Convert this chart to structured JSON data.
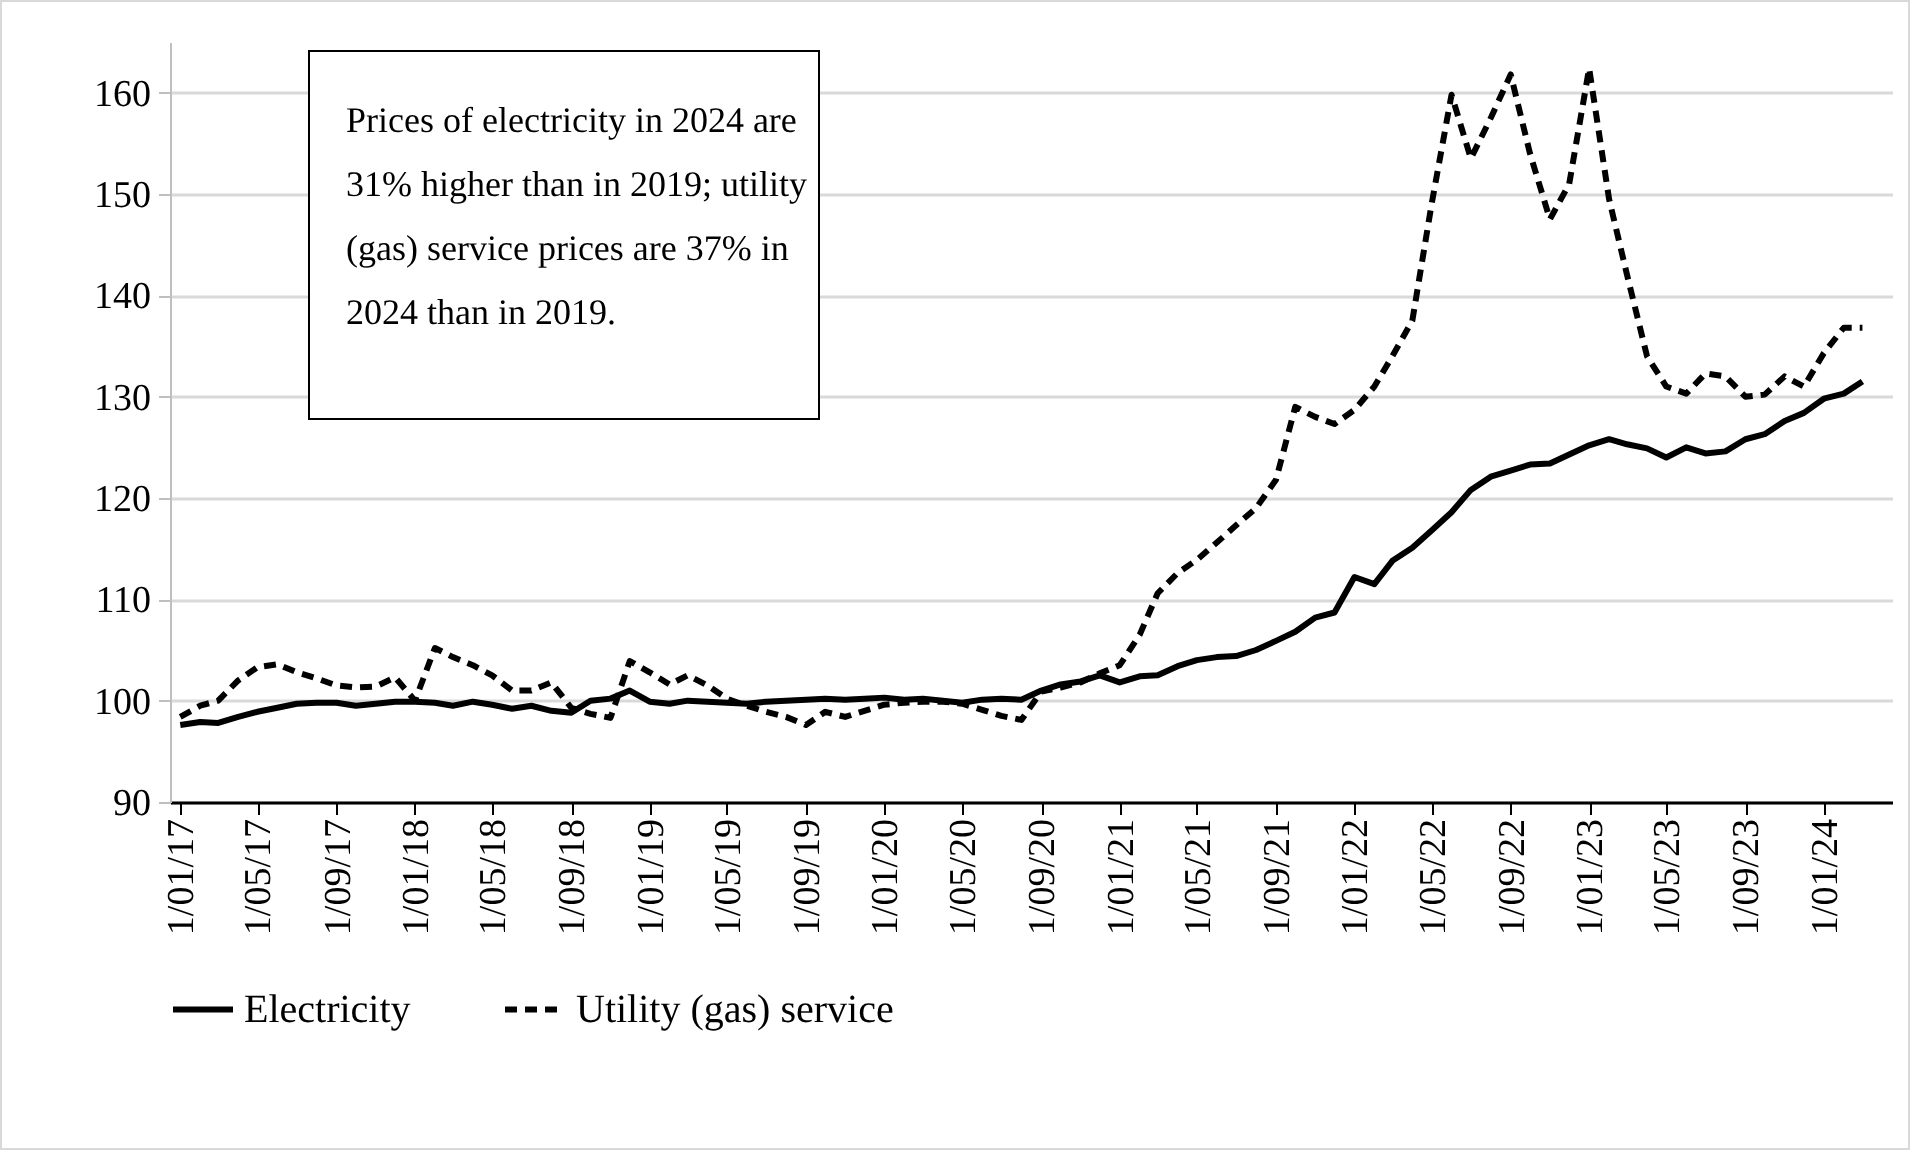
{
  "chart_data": {
    "type": "line",
    "annotations": [
      "Prices of electricity in 2024 are 31% higher than in 2019; utility (gas) service prices are 37% in 2024 than in 2019."
    ],
    "x": [
      "2017-01",
      "2017-02",
      "2017-03",
      "2017-04",
      "2017-05",
      "2017-06",
      "2017-07",
      "2017-08",
      "2017-09",
      "2017-10",
      "2017-11",
      "2017-12",
      "2018-01",
      "2018-02",
      "2018-03",
      "2018-04",
      "2018-05",
      "2018-06",
      "2018-07",
      "2018-08",
      "2018-09",
      "2018-10",
      "2018-11",
      "2018-12",
      "2019-01",
      "2019-02",
      "2019-03",
      "2019-04",
      "2019-05",
      "2019-06",
      "2019-07",
      "2019-08",
      "2019-09",
      "2019-10",
      "2019-11",
      "2019-12",
      "2020-01",
      "2020-02",
      "2020-03",
      "2020-04",
      "2020-05",
      "2020-06",
      "2020-07",
      "2020-08",
      "2020-09",
      "2020-10",
      "2020-11",
      "2020-12",
      "2021-01",
      "2021-02",
      "2021-03",
      "2021-04",
      "2021-05",
      "2021-06",
      "2021-07",
      "2021-08",
      "2021-09",
      "2021-10",
      "2021-11",
      "2021-12",
      "2022-01",
      "2022-02",
      "2022-03",
      "2022-04",
      "2022-05",
      "2022-06",
      "2022-07",
      "2022-08",
      "2022-09",
      "2022-10",
      "2022-11",
      "2022-12",
      "2023-01",
      "2023-02",
      "2023-03",
      "2023-04",
      "2023-05",
      "2023-06",
      "2023-07",
      "2023-08",
      "2023-09",
      "2023-10",
      "2023-11",
      "2023-12",
      "2024-01",
      "2024-02",
      "2024-03"
    ],
    "series": [
      {
        "name": "Electricity",
        "color": "#000000",
        "line_style": "solid",
        "values": [
          97.6,
          97.9,
          97.8,
          98.4,
          98.9,
          99.3,
          99.7,
          99.8,
          99.8,
          99.5,
          99.7,
          99.9,
          99.9,
          99.8,
          99.5,
          99.9,
          99.6,
          99.2,
          99.5,
          99.0,
          98.8,
          100,
          100.2,
          101,
          99.9,
          99.7,
          100,
          99.9,
          99.8,
          99.7,
          99.9,
          100,
          100.1,
          100.2,
          100.1,
          100.2,
          100.3,
          100.1,
          100.2,
          100,
          99.8,
          100.1,
          100.2,
          100.1,
          101,
          101.6,
          101.9,
          102.5,
          101.8,
          102.4,
          102.5,
          103.4,
          104,
          104.3,
          104.4,
          105,
          105.9,
          106.8,
          108.2,
          108.7,
          112.2,
          111.5,
          113.8,
          115.1,
          116.8,
          118.6,
          120.8,
          122.1,
          122.7,
          123.3,
          123.4,
          124.3,
          125.2,
          125.8,
          125.3,
          124.9,
          124,
          125,
          124.4,
          124.6,
          125.8,
          126.3,
          127.6,
          128.4,
          129.8,
          130.3,
          131.5
        ]
      },
      {
        "name": "Utility (gas) service",
        "color": "#000000",
        "line_style": "dashed",
        "values": [
          98.4,
          99.5,
          100,
          102,
          103.3,
          103.6,
          102.8,
          102.2,
          101.5,
          101.3,
          101.4,
          102.3,
          100,
          105.2,
          104.3,
          103.5,
          102.5,
          101,
          101,
          101.8,
          99.3,
          98.7,
          98.3,
          103.9,
          102.8,
          101.6,
          102.5,
          101.5,
          100.2,
          99.5,
          98.9,
          98.4,
          97.6,
          98.9,
          98.4,
          99,
          99.6,
          99.8,
          99.9,
          99.9,
          99.7,
          99.1,
          98.5,
          98.1,
          100.9,
          101.3,
          101.8,
          102.7,
          103.5,
          106.5,
          110.6,
          112.6,
          113.9,
          115.6,
          117.3,
          119,
          121.8,
          129,
          128,
          127.3,
          128.7,
          131,
          134,
          137.5,
          149,
          159.8,
          153.5,
          157.5,
          161.8,
          154,
          147.5,
          151,
          162.4,
          149.5,
          142,
          134,
          131,
          130.3,
          132.3,
          132,
          130,
          130.2,
          132,
          131,
          134.3,
          136.8,
          136.8
        ]
      }
    ],
    "xlim": [
      "2016-12-16",
      "2024-04-16"
    ],
    "xticks": [
      {
        "value": "2017-01",
        "label": "1/01/17"
      },
      {
        "value": "2017-05",
        "label": "1/05/17"
      },
      {
        "value": "2017-09",
        "label": "1/09/17"
      },
      {
        "value": "2018-01",
        "label": "1/01/18"
      },
      {
        "value": "2018-05",
        "label": "1/05/18"
      },
      {
        "value": "2018-09",
        "label": "1/09/18"
      },
      {
        "value": "2019-01",
        "label": "1/01/19"
      },
      {
        "value": "2019-05",
        "label": "1/05/19"
      },
      {
        "value": "2019-09",
        "label": "1/09/19"
      },
      {
        "value": "2020-01",
        "label": "1/01/20"
      },
      {
        "value": "2020-05",
        "label": "1/05/20"
      },
      {
        "value": "2020-09",
        "label": "1/09/20"
      },
      {
        "value": "2021-01",
        "label": "1/01/21"
      },
      {
        "value": "2021-05",
        "label": "1/05/21"
      },
      {
        "value": "2021-09",
        "label": "1/09/21"
      },
      {
        "value": "2022-01",
        "label": "1/01/22"
      },
      {
        "value": "2022-05",
        "label": "1/05/22"
      },
      {
        "value": "2022-09",
        "label": "1/09/22"
      },
      {
        "value": "2023-01",
        "label": "1/01/23"
      },
      {
        "value": "2023-05",
        "label": "1/05/23"
      },
      {
        "value": "2023-09",
        "label": "1/09/23"
      },
      {
        "value": "2024-01",
        "label": "1/01/24"
      }
    ],
    "ylim": [
      90,
      165
    ],
    "yticks": [
      90,
      100,
      110,
      120,
      130,
      140,
      150,
      160
    ],
    "grid": "y",
    "legend": "bottom"
  }
}
